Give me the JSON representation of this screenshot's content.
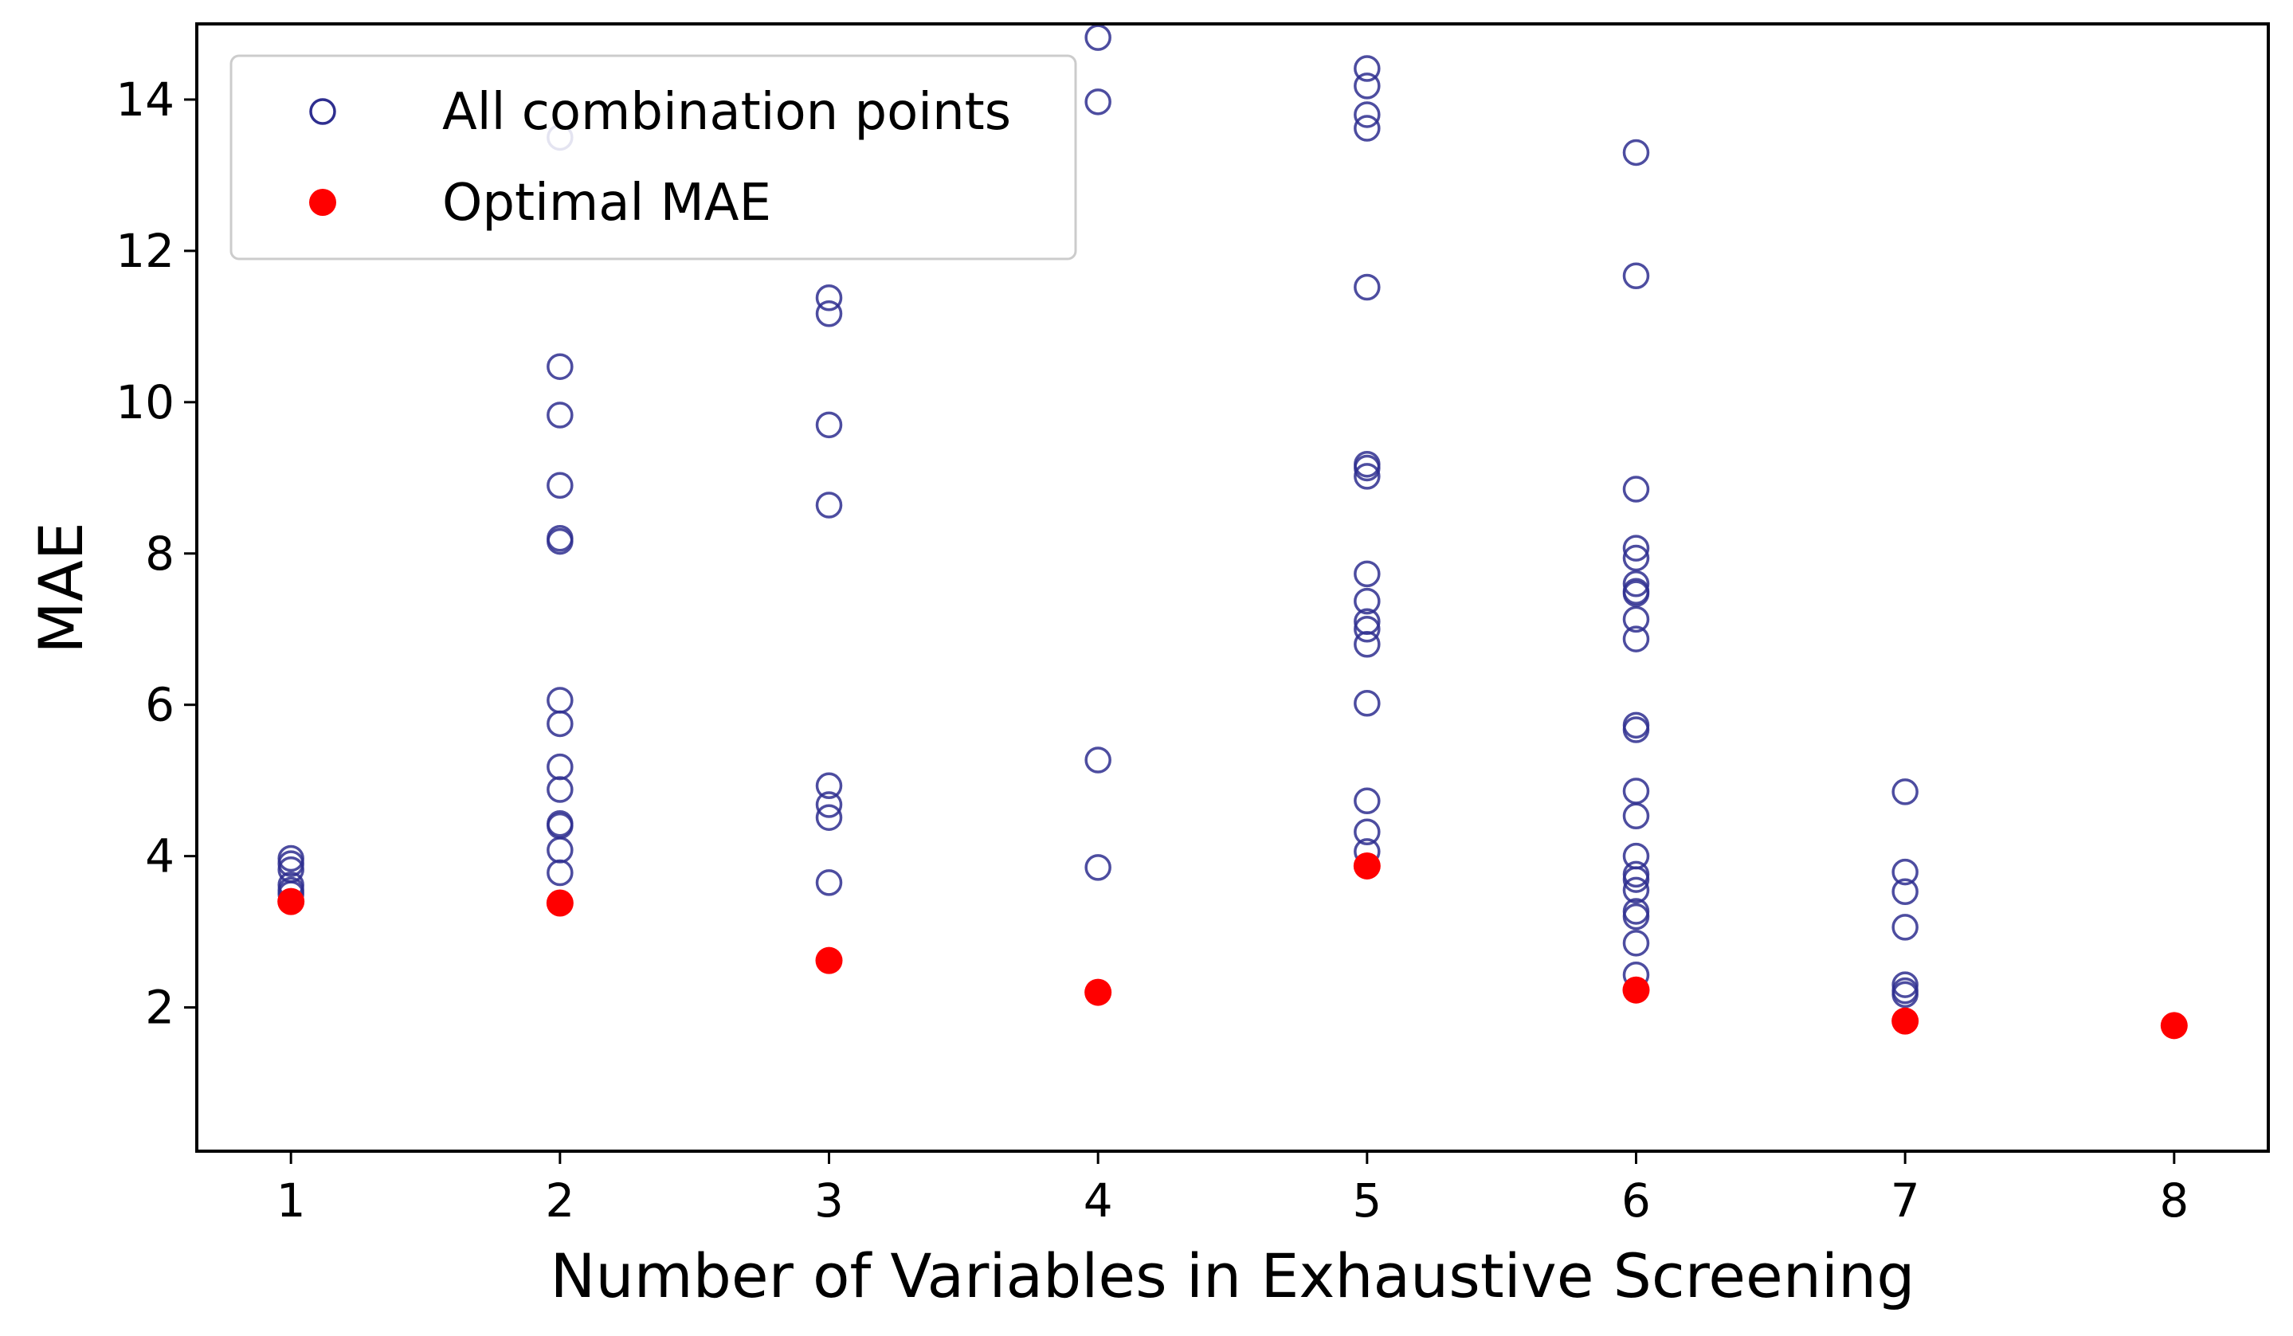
{
  "chart_data": {
    "type": "scatter",
    "title": "",
    "xlabel": "Number of Variables in Exhaustive Screening",
    "ylabel": "MAE",
    "xlim": [
      0.65,
      8.35
    ],
    "ylim": [
      0.1,
      15.0
    ],
    "x_ticks": [
      1,
      2,
      3,
      4,
      5,
      6,
      7,
      8
    ],
    "y_ticks": [
      2,
      4,
      6,
      8,
      10,
      12,
      14
    ],
    "grid": false,
    "legend": {
      "position": "top-left"
    },
    "series": [
      {
        "name": "All combination points",
        "marker": "open-circle",
        "color": "#2e2e8f",
        "points": [
          [
            1,
            3.97
          ],
          [
            1,
            3.9
          ],
          [
            1,
            3.82
          ],
          [
            1,
            3.62
          ],
          [
            1,
            3.55
          ],
          [
            1,
            3.5
          ],
          [
            2,
            13.5
          ],
          [
            2,
            10.47
          ],
          [
            2,
            9.83
          ],
          [
            2,
            8.9
          ],
          [
            2,
            8.2
          ],
          [
            2,
            8.16
          ],
          [
            2,
            6.06
          ],
          [
            2,
            5.75
          ],
          [
            2,
            5.18
          ],
          [
            2,
            4.88
          ],
          [
            2,
            4.43
          ],
          [
            2,
            4.4
          ],
          [
            2,
            4.08
          ],
          [
            2,
            3.78
          ],
          [
            3,
            11.38
          ],
          [
            3,
            11.17
          ],
          [
            3,
            9.7
          ],
          [
            3,
            8.64
          ],
          [
            3,
            4.93
          ],
          [
            3,
            4.68
          ],
          [
            3,
            4.51
          ],
          [
            3,
            3.65
          ],
          [
            4,
            14.82
          ],
          [
            4,
            13.97
          ],
          [
            4,
            5.27
          ],
          [
            4,
            3.85
          ],
          [
            5,
            14.41
          ],
          [
            5,
            14.18
          ],
          [
            5,
            13.8
          ],
          [
            5,
            13.62
          ],
          [
            5,
            11.52
          ],
          [
            5,
            9.18
          ],
          [
            5,
            9.13
          ],
          [
            5,
            9.02
          ],
          [
            5,
            7.73
          ],
          [
            5,
            7.37
          ],
          [
            5,
            7.1
          ],
          [
            5,
            7.0
          ],
          [
            5,
            6.8
          ],
          [
            5,
            6.02
          ],
          [
            5,
            4.73
          ],
          [
            5,
            4.32
          ],
          [
            5,
            4.06
          ],
          [
            6,
            13.3
          ],
          [
            6,
            11.67
          ],
          [
            6,
            8.85
          ],
          [
            6,
            8.07
          ],
          [
            6,
            7.94
          ],
          [
            6,
            7.6
          ],
          [
            6,
            7.5
          ],
          [
            6,
            7.47
          ],
          [
            6,
            7.13
          ],
          [
            6,
            6.87
          ],
          [
            6,
            5.73
          ],
          [
            6,
            5.67
          ],
          [
            6,
            4.86
          ],
          [
            6,
            4.53
          ],
          [
            6,
            4.0
          ],
          [
            6,
            3.76
          ],
          [
            6,
            3.69
          ],
          [
            6,
            3.55
          ],
          [
            6,
            3.27
          ],
          [
            6,
            3.2
          ],
          [
            6,
            2.85
          ],
          [
            6,
            2.43
          ],
          [
            7,
            4.85
          ],
          [
            7,
            3.79
          ],
          [
            7,
            3.53
          ],
          [
            7,
            3.06
          ],
          [
            7,
            2.3
          ],
          [
            7,
            2.22
          ],
          [
            7,
            2.17
          ]
        ]
      },
      {
        "name": "Optimal MAE",
        "marker": "filled-circle",
        "color": "#ff0000",
        "points": [
          [
            1,
            3.4
          ],
          [
            2,
            3.38
          ],
          [
            3,
            2.62
          ],
          [
            4,
            2.2
          ],
          [
            5,
            3.87
          ],
          [
            6,
            2.23
          ],
          [
            7,
            1.82
          ],
          [
            8,
            1.76
          ]
        ]
      }
    ]
  }
}
